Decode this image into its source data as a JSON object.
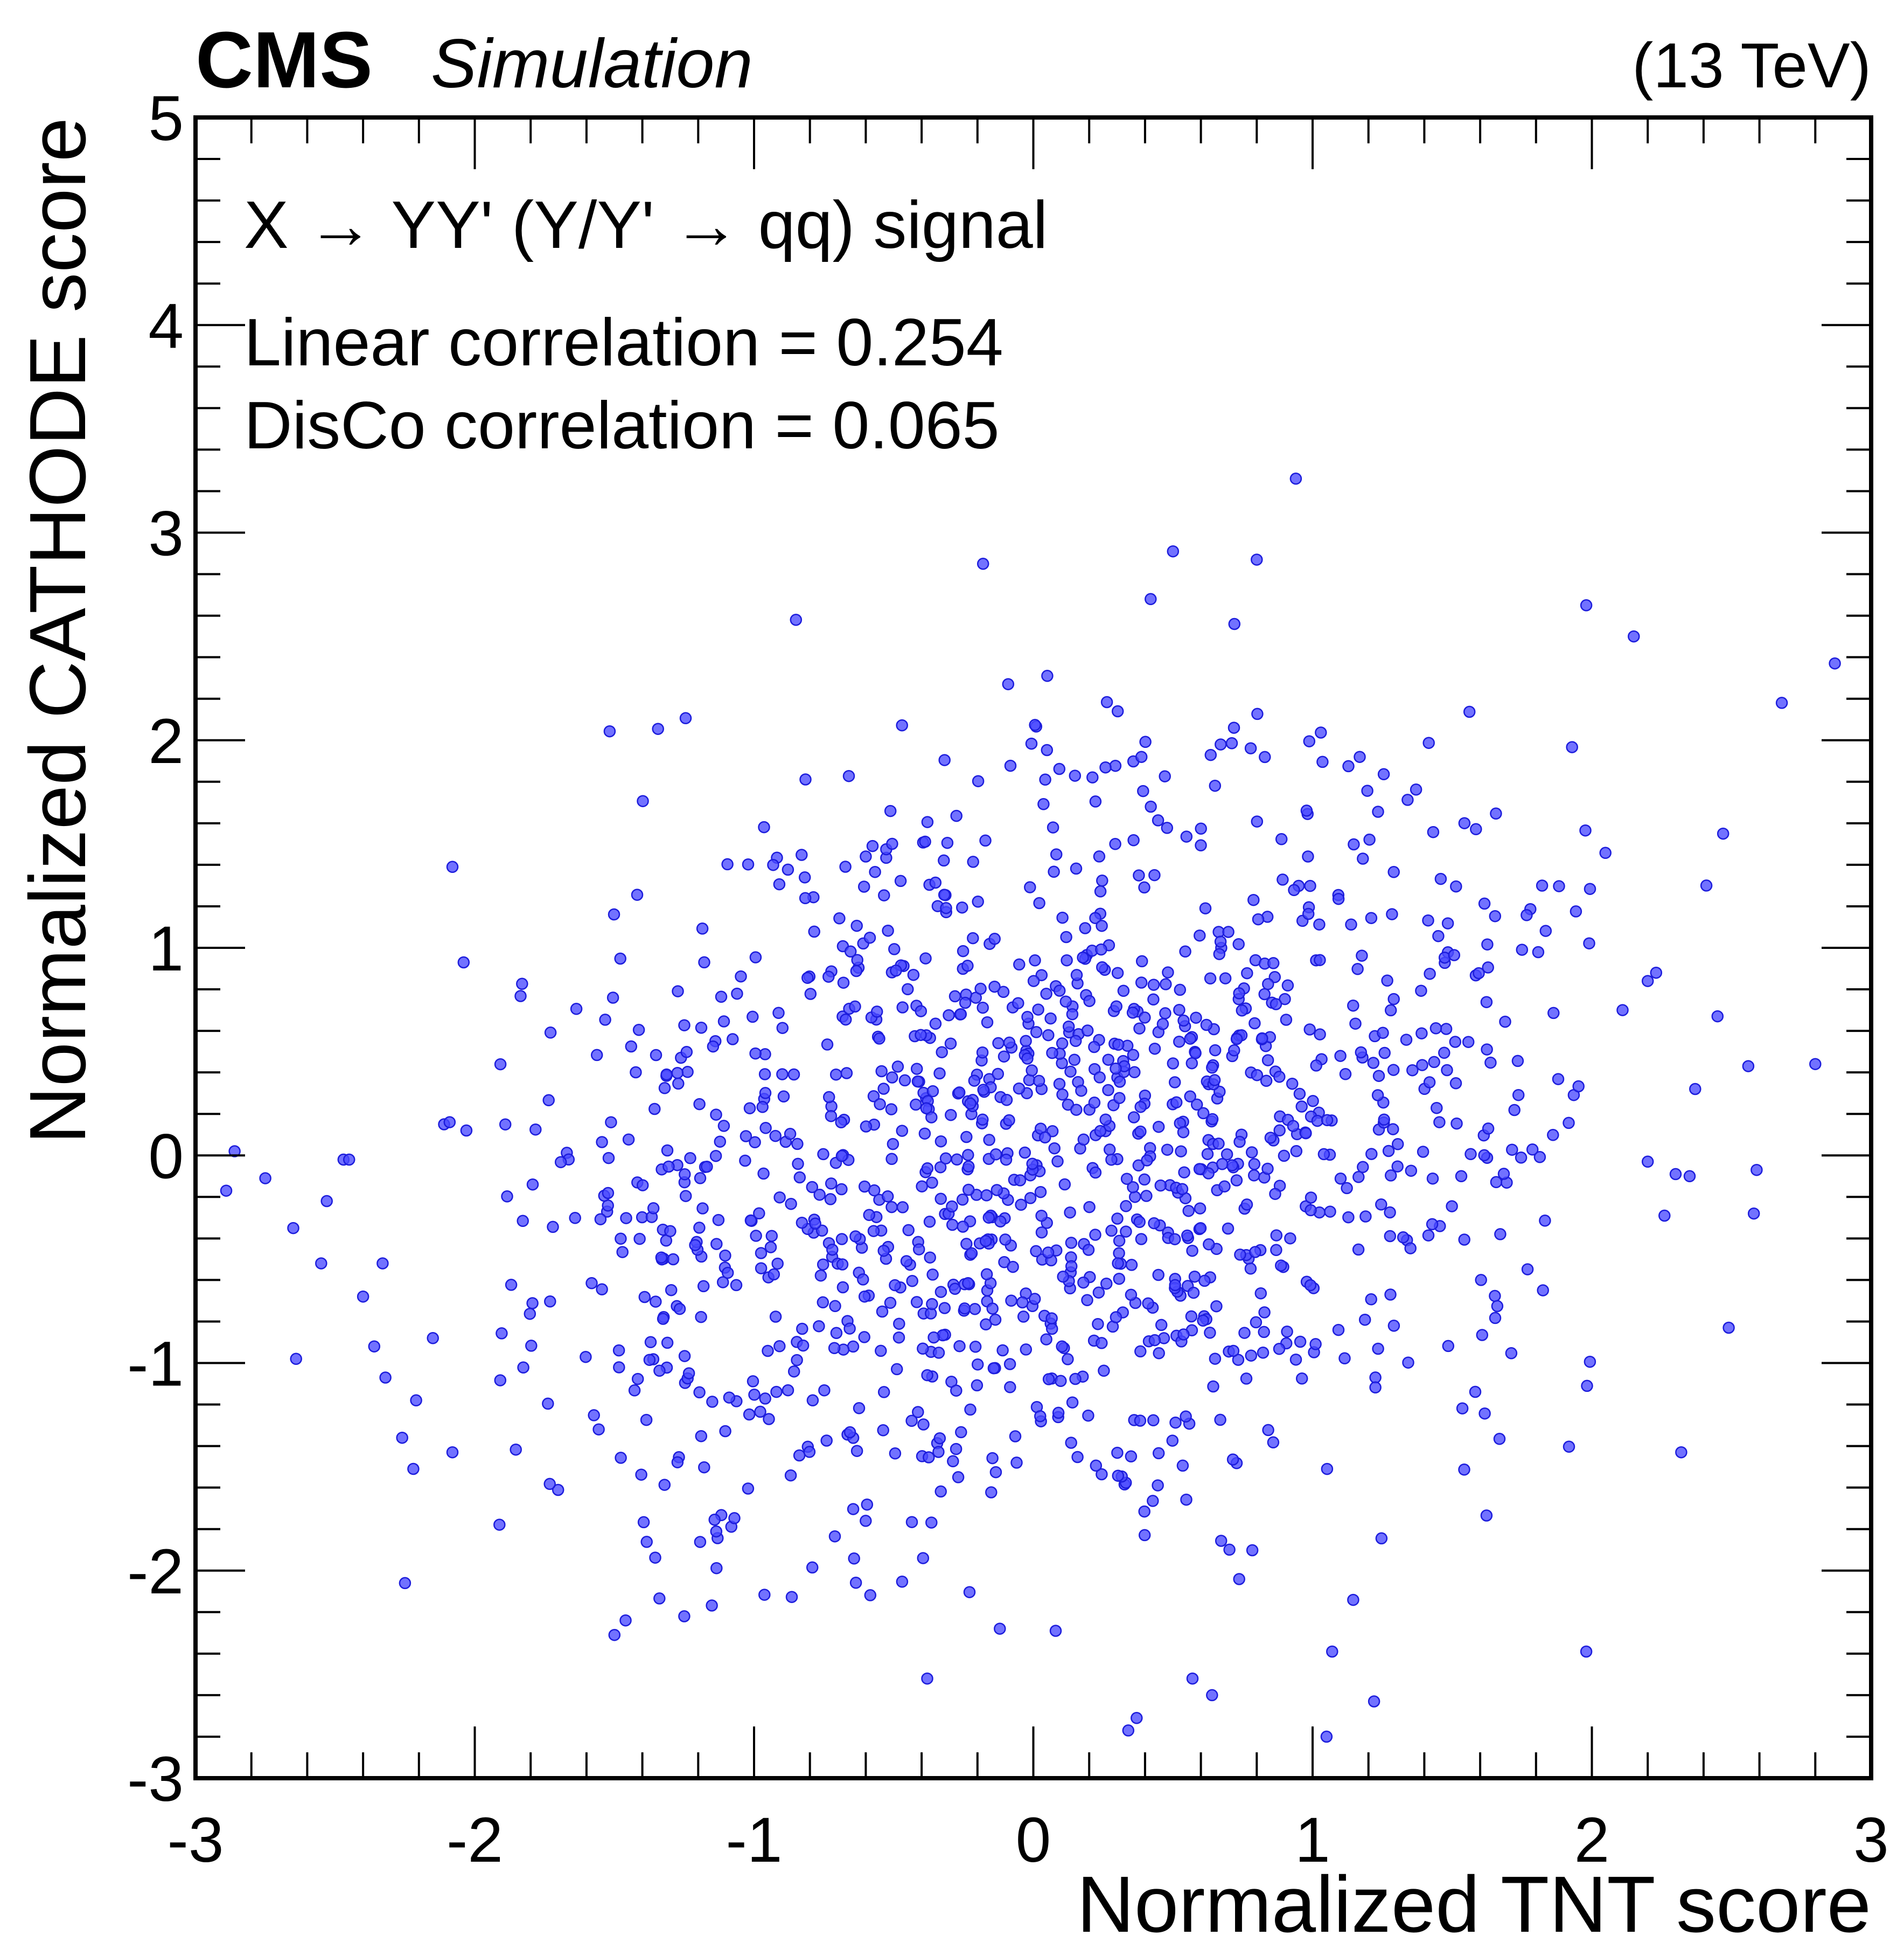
{
  "header": {
    "experiment": "CMS",
    "label": "Simulation",
    "energy": "(13 TeV)"
  },
  "annotations": {
    "process": "X → YY' (Y/Y' → qq) signal",
    "linear": "Linear correlation = 0.254",
    "disco": "DisCo correlation = 0.065"
  },
  "colors": {
    "marker": "#4a4aff",
    "marker_edge": "#1c1cdc"
  },
  "chart_data": {
    "type": "scatter",
    "title": "",
    "xlabel": "Normalized TNT score",
    "ylabel": "Normalized CATHODE score",
    "xlim": [
      -3,
      3
    ],
    "ylim": [
      -3,
      5
    ],
    "xticks": [
      -3,
      -2,
      -1,
      0,
      1,
      2,
      3
    ],
    "xtick_labels": [
      "-3",
      "-2",
      "-1",
      "0",
      "1",
      "2",
      "3"
    ],
    "yticks": [
      -3,
      -2,
      -1,
      0,
      1,
      2,
      3,
      4,
      5
    ],
    "ytick_labels": [
      "-3",
      "-2",
      "-1",
      "0",
      "1",
      "2",
      "3",
      "4",
      "5"
    ],
    "grid": false,
    "linear_correlation": 0.254,
    "disco_correlation": 0.065,
    "n_points": 1400,
    "x_outliers": [
      [
        -2.89,
        -0.17
      ],
      [
        -2.86,
        0.02
      ],
      [
        -2.75,
        -0.11
      ],
      [
        -2.65,
        -0.35
      ],
      [
        -2.64,
        -0.98
      ],
      [
        -2.55,
        -0.52
      ],
      [
        -2.53,
        -0.22
      ],
      [
        -2.47,
        -0.02
      ],
      [
        -2.45,
        -0.02
      ],
      [
        -2.4,
        -0.68
      ],
      [
        -2.36,
        -0.92
      ],
      [
        -2.33,
        -0.52
      ],
      [
        -2.32,
        -1.07
      ],
      [
        -2.26,
        -1.36
      ],
      [
        -2.25,
        -2.06
      ],
      [
        -2.22,
        -1.51
      ],
      [
        -2.21,
        -1.18
      ],
      [
        -2.15,
        -0.88
      ],
      [
        -2.11,
        0.15
      ],
      [
        -2.09,
        0.16
      ],
      [
        -2.08,
        1.39
      ],
      [
        -2.08,
        -1.43
      ],
      [
        -2.04,
        0.93
      ],
      [
        -2.03,
        0.12
      ],
      [
        2.11,
        0.7
      ],
      [
        2.15,
        2.5
      ],
      [
        2.2,
        -0.03
      ],
      [
        2.2,
        0.84
      ],
      [
        2.23,
        0.88
      ],
      [
        2.26,
        -0.29
      ],
      [
        2.3,
        -0.09
      ],
      [
        2.32,
        -1.43
      ],
      [
        2.35,
        -0.1
      ],
      [
        2.37,
        0.32
      ],
      [
        2.41,
        1.3
      ],
      [
        2.45,
        0.67
      ],
      [
        2.47,
        1.55
      ],
      [
        2.49,
        -0.83
      ],
      [
        2.56,
        0.43
      ],
      [
        2.58,
        -0.28
      ],
      [
        2.59,
        -0.07
      ],
      [
        2.68,
        2.18
      ],
      [
        2.8,
        0.44
      ],
      [
        2.87,
        2.37
      ]
    ],
    "y_outliers": [
      [
        0.94,
        3.26
      ],
      [
        0.5,
        2.91
      ],
      [
        -0.18,
        2.85
      ],
      [
        0.8,
        2.87
      ],
      [
        -0.85,
        2.58
      ],
      [
        0.42,
        2.68
      ],
      [
        0.72,
        2.56
      ],
      [
        -0.09,
        2.27
      ],
      [
        0.05,
        2.31
      ],
      [
        1.98,
        2.65
      ],
      [
        0.34,
        -2.77
      ],
      [
        0.37,
        -2.71
      ],
      [
        1.05,
        -2.8
      ],
      [
        1.22,
        -2.63
      ],
      [
        -0.38,
        -2.52
      ],
      [
        0.64,
        -2.6
      ],
      [
        0.57,
        -2.52
      ],
      [
        1.07,
        -2.39
      ],
      [
        1.98,
        -2.39
      ],
      [
        -1.5,
        -2.31
      ],
      [
        -1.46,
        -2.24
      ],
      [
        -1.25,
        -2.22
      ],
      [
        0.08,
        -2.29
      ],
      [
        -0.12,
        -2.28
      ]
    ]
  }
}
